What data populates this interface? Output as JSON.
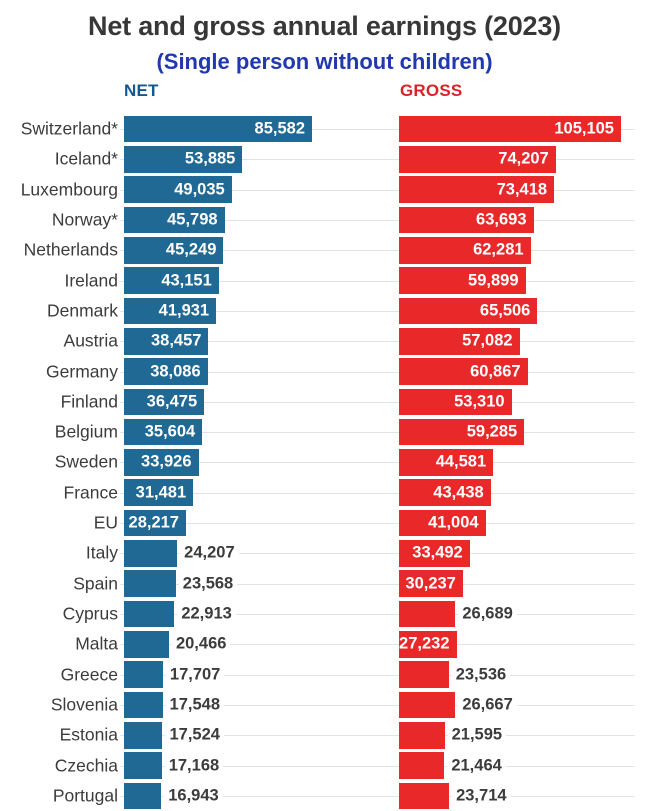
{
  "chart_data": {
    "type": "bar",
    "orientation": "horizontal",
    "title": "Net and gross annual earnings (2023)",
    "subtitle": "(Single person without children)",
    "legend_position": "column-headers-top",
    "grid": "horizontal-row-lines",
    "value_format": "thousands-comma",
    "categories": [
      "Switzerland*",
      "Iceland*",
      "Luxembourg",
      "Norway*",
      "Netherlands",
      "Ireland",
      "Denmark",
      "Austria",
      "Germany",
      "Finland",
      "Belgium",
      "Sweden",
      "France",
      "EU",
      "Italy",
      "Spain",
      "Cyprus",
      "Malta",
      "Greece",
      "Slovenia",
      "Estonia",
      "Czechia",
      "Portugal"
    ],
    "series": [
      {
        "name": "NET",
        "color": "#1f6994",
        "header_color": "#15588c",
        "axis_range": [
          0,
          85582
        ],
        "values": [
          85582,
          53885,
          49035,
          45798,
          45249,
          43151,
          41931,
          38457,
          38086,
          36475,
          35604,
          33926,
          31481,
          28217,
          24207,
          23568,
          22913,
          20466,
          17707,
          17548,
          17524,
          17168,
          16943
        ]
      },
      {
        "name": "GROSS",
        "color": "#e9282a",
        "header_color": "#d8232a",
        "axis_range": [
          0,
          105105
        ],
        "values": [
          105105,
          74207,
          73418,
          63693,
          62281,
          59899,
          65506,
          57082,
          60867,
          53310,
          59285,
          44581,
          43438,
          41004,
          33492,
          30237,
          26689,
          27232,
          23536,
          26667,
          21595,
          21464,
          23714
        ]
      }
    ],
    "colors": {
      "title_text": "#373737",
      "subtitle_text": "#2138ae",
      "label_text": "#3c3c3c",
      "gridline": "#e3e3e3",
      "value_inside_text": "#ffffff"
    }
  }
}
